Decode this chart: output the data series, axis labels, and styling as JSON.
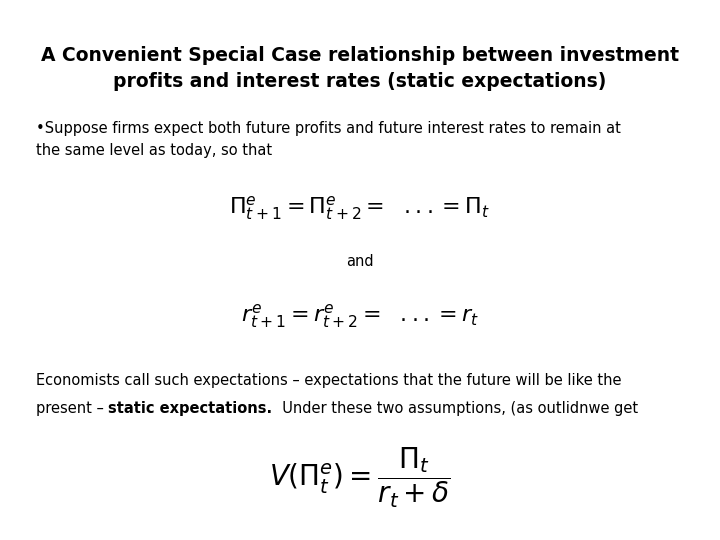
{
  "title_line1": "A Convenient Special Case relationship between investment",
  "title_line2": "profits and interest rates (static expectations)",
  "and_text": "and",
  "body_text_line1": "Economists call such expectations – expectations that the future will be like the",
  "body_text_line2_normal1": "present – ",
  "body_text_bold": "static expectations.",
  "body_text_line2_end": "  Under these two assumptions, (as outlidnwe get",
  "bg_color": "#ffffff",
  "text_color": "#000000",
  "title_fontsize": 13.5,
  "body_fontsize": 10.5,
  "eq_fontsize": 15,
  "and_fontsize": 10.5
}
